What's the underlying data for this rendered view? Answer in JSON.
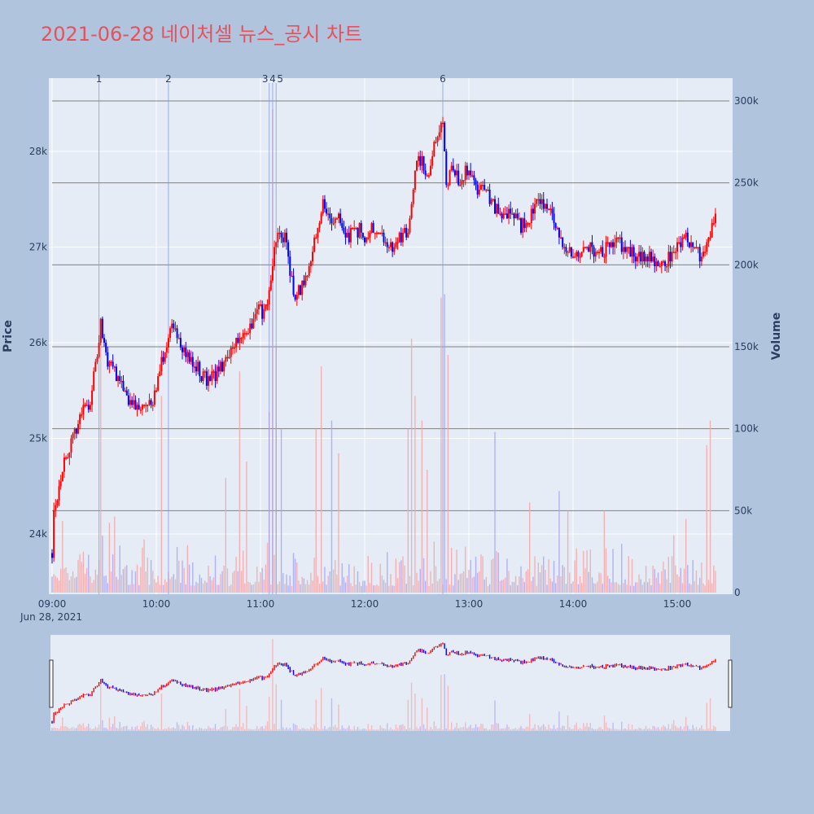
{
  "title": "2021-06-28 네이처셀 뉴스_공시 차트",
  "colors": {
    "title": "#e8505b",
    "page_bg": "#b0c4de",
    "plot_bg": "#e5ecf6",
    "up": "#ff0000",
    "down": "#0000ff",
    "volume_up": "#f4a8a8",
    "volume_down": "#a8a8f4",
    "marker_line": "#8a9ae8",
    "volume_grid": "#808080"
  },
  "chart_data": {
    "type": "candlestick",
    "date_label": "Jun 28, 2021",
    "xaxis": {
      "range": [
        "09:00",
        "15:30"
      ],
      "tick_labels": [
        "09:00",
        "10:00",
        "11:00",
        "12:00",
        "13:00",
        "14:00",
        "15:00"
      ]
    },
    "yaxis_price": {
      "title": "Price",
      "range": [
        23400,
        28800
      ],
      "ticks": [
        24000,
        25000,
        26000,
        27000,
        28000
      ],
      "tick_labels": [
        "24k",
        "25k",
        "26k",
        "27k",
        "28k"
      ]
    },
    "yaxis_volume": {
      "title": "Volume",
      "range": [
        0,
        300000
      ],
      "ticks": [
        0,
        50000,
        100000,
        150000,
        200000,
        250000,
        300000
      ],
      "tick_labels": [
        "0",
        "50k",
        "100k",
        "150k",
        "200k",
        "250k",
        "300k"
      ]
    },
    "price_path": [
      [
        "09:00",
        23800
      ],
      [
        "09:01",
        24300
      ],
      [
        "09:03",
        24400
      ],
      [
        "09:06",
        24700
      ],
      [
        "09:10",
        24900
      ],
      [
        "09:14",
        25100
      ],
      [
        "09:18",
        25300
      ],
      [
        "09:22",
        25400
      ],
      [
        "09:26",
        25900
      ],
      [
        "09:28",
        26200
      ],
      [
        "09:32",
        25800
      ],
      [
        "09:36",
        25700
      ],
      [
        "09:40",
        25600
      ],
      [
        "09:44",
        25400
      ],
      [
        "09:50",
        25300
      ],
      [
        "09:58",
        25400
      ],
      [
        "10:03",
        25800
      ],
      [
        "10:06",
        26000
      ],
      [
        "10:09",
        26200
      ],
      [
        "10:12",
        26100
      ],
      [
        "10:16",
        25900
      ],
      [
        "10:20",
        25800
      ],
      [
        "10:25",
        25700
      ],
      [
        "10:30",
        25600
      ],
      [
        "10:35",
        25700
      ],
      [
        "10:40",
        25800
      ],
      [
        "10:45",
        26000
      ],
      [
        "10:50",
        26100
      ],
      [
        "10:55",
        26200
      ],
      [
        "10:58",
        26400
      ],
      [
        "11:02",
        26300
      ],
      [
        "11:05",
        26500
      ],
      [
        "11:08",
        27000
      ],
      [
        "11:11",
        27200
      ],
      [
        "11:14",
        27100
      ],
      [
        "11:17",
        26700
      ],
      [
        "11:20",
        26500
      ],
      [
        "11:24",
        26600
      ],
      [
        "11:28",
        26800
      ],
      [
        "11:32",
        27100
      ],
      [
        "11:36",
        27500
      ],
      [
        "11:40",
        27300
      ],
      [
        "11:45",
        27300
      ],
      [
        "11:50",
        27100
      ],
      [
        "11:55",
        27200
      ],
      [
        "12:00",
        27100
      ],
      [
        "12:05",
        27200
      ],
      [
        "12:10",
        27100
      ],
      [
        "12:15",
        27000
      ],
      [
        "12:20",
        27100
      ],
      [
        "12:25",
        27200
      ],
      [
        "12:30",
        27900
      ],
      [
        "12:33",
        27900
      ],
      [
        "12:36",
        27700
      ],
      [
        "12:40",
        28100
      ],
      [
        "12:43",
        28200
      ],
      [
        "12:45",
        28300
      ],
      [
        "12:47",
        27700
      ],
      [
        "12:50",
        27800
      ],
      [
        "12:55",
        27700
      ],
      [
        "13:00",
        27800
      ],
      [
        "13:05",
        27600
      ],
      [
        "13:10",
        27600
      ],
      [
        "13:15",
        27400
      ],
      [
        "13:20",
        27300
      ],
      [
        "13:25",
        27400
      ],
      [
        "13:30",
        27200
      ],
      [
        "13:35",
        27300
      ],
      [
        "13:40",
        27500
      ],
      [
        "13:45",
        27400
      ],
      [
        "13:50",
        27200
      ],
      [
        "13:55",
        27000
      ],
      [
        "14:00",
        26900
      ],
      [
        "14:05",
        26900
      ],
      [
        "14:10",
        27000
      ],
      [
        "14:15",
        26900
      ],
      [
        "14:20",
        27000
      ],
      [
        "14:25",
        27100
      ],
      [
        "14:30",
        27000
      ],
      [
        "14:35",
        26900
      ],
      [
        "14:40",
        26900
      ],
      [
        "14:45",
        26900
      ],
      [
        "14:50",
        26800
      ],
      [
        "14:55",
        26900
      ],
      [
        "15:00",
        27000
      ],
      [
        "15:05",
        27100
      ],
      [
        "15:10",
        27000
      ],
      [
        "15:15",
        26900
      ],
      [
        "15:20",
        27200
      ],
      [
        "15:22",
        27400
      ]
    ],
    "volume_spikes": [
      [
        "09:28",
        110000
      ],
      [
        "10:03",
        120000
      ],
      [
        "10:40",
        70000
      ],
      [
        "10:48",
        135000
      ],
      [
        "10:52",
        80000
      ],
      [
        "11:05",
        110000
      ],
      [
        "11:07",
        295000
      ],
      [
        "11:09",
        150000
      ],
      [
        "11:12",
        100000
      ],
      [
        "11:32",
        100000
      ],
      [
        "11:35",
        138000
      ],
      [
        "11:41",
        105000
      ],
      [
        "11:45",
        85000
      ],
      [
        "12:25",
        100000
      ],
      [
        "12:27",
        155000
      ],
      [
        "12:29",
        120000
      ],
      [
        "12:33",
        105000
      ],
      [
        "12:36",
        75000
      ],
      [
        "12:44",
        180000
      ],
      [
        "12:46",
        182000
      ],
      [
        "12:48",
        145000
      ],
      [
        "13:15",
        98000
      ],
      [
        "13:35",
        55000
      ],
      [
        "13:52",
        62000
      ],
      [
        "13:57",
        50000
      ],
      [
        "14:18",
        50000
      ],
      [
        "14:58",
        35000
      ],
      [
        "15:05",
        45000
      ],
      [
        "15:17",
        90000
      ],
      [
        "15:19",
        105000
      ],
      [
        "15:27",
        120000
      ]
    ],
    "news_markers": [
      {
        "label": "1",
        "time": "09:27"
      },
      {
        "label": "2",
        "time": "10:07"
      },
      {
        "label": "3",
        "time": "11:05"
      },
      {
        "label": "4",
        "time": "11:07"
      },
      {
        "label": "5",
        "time": "11:09"
      },
      {
        "label": "6",
        "time": "12:45"
      }
    ],
    "volume_gridlines": [
      50000,
      100000,
      150000,
      200000,
      250000,
      300000
    ],
    "grid": true,
    "range_slider": true
  }
}
